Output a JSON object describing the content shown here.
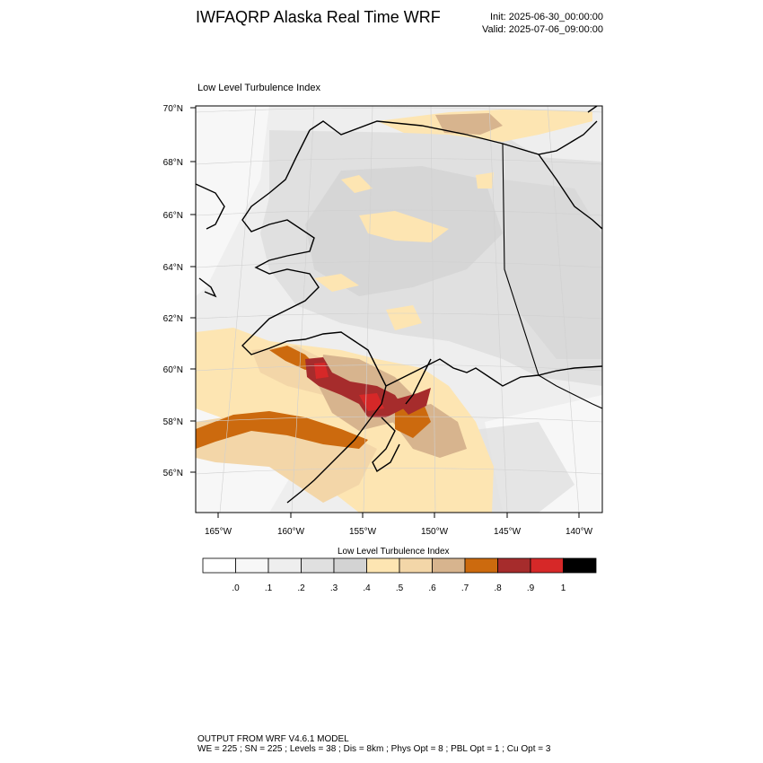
{
  "header": {
    "title": "IWFAQRP Alaska Real Time WRF",
    "init": "Init: 2025-06-30_00:00:00",
    "valid": "Valid: 2025-07-06_09:00:00"
  },
  "map": {
    "plot_title": "Low Level Turbulence Index",
    "lat_labels": [
      "70°N",
      "68°N",
      "66°N",
      "64°N",
      "62°N",
      "60°N",
      "58°N",
      "56°N"
    ],
    "lon_labels": [
      "165°W",
      "160°W",
      "155°W",
      "150°W",
      "145°W",
      "140°W"
    ]
  },
  "colorbar": {
    "title": "Low Level Turbulence Index",
    "colors": [
      "#ffffff",
      "#f7f7f7",
      "#eeeeee",
      "#e0e0e0",
      "#d3d3d3",
      "#fde5b2",
      "#f3d6a8",
      "#d7b48e",
      "#cc6a0e",
      "#a62c2c",
      "#d62828",
      "#000000"
    ],
    "ticks": [
      ".0",
      ".1",
      ".2",
      ".3",
      ".4",
      ".5",
      ".6",
      ".7",
      ".8",
      ".9",
      "1"
    ]
  },
  "footer": {
    "line1": "OUTPUT FROM WRF V4.6.1 MODEL",
    "line2": "WE = 225 ; SN = 225 ; Levels = 38 ; Dis = 8km ; Phys Opt = 8 ; PBL Opt = 1 ; Cu Opt = 3"
  }
}
